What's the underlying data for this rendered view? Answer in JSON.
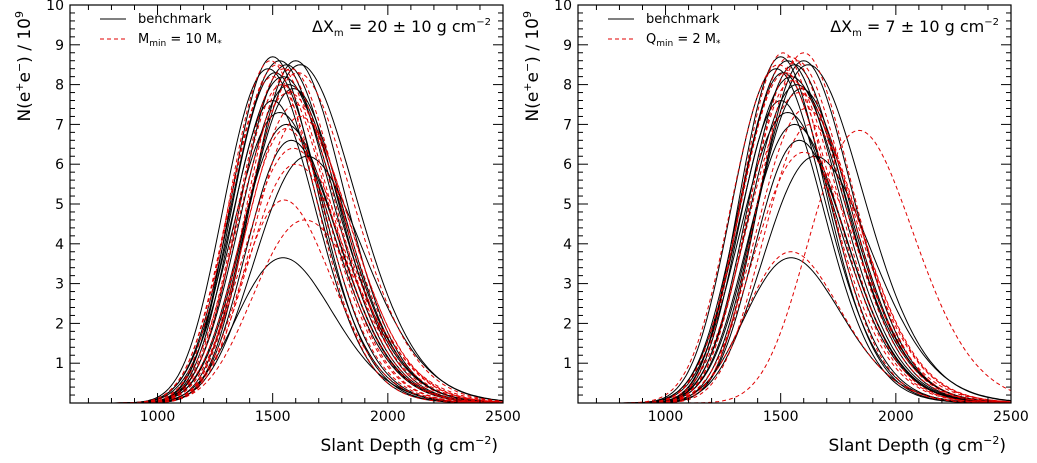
{
  "chart_data": [
    {
      "type": "line",
      "panel": "left",
      "xlabel": "Slant Depth (g cm",
      "xlabel_sup": "−2",
      "xlabel_end": ")",
      "ylabel": "N(e",
      "ylabel_sup1": "+",
      "ylabel_mid": "e",
      "ylabel_sup2": "−",
      "ylabel_end": ") / 10",
      "ylabel_sup3": "9",
      "xlim": [
        620,
        2500
      ],
      "ylim": [
        0,
        10
      ],
      "x_ticks": [
        1000,
        1500,
        2000,
        2500
      ],
      "x_tick_labels": [
        "1000",
        "1500",
        "2000",
        "2500"
      ],
      "y_ticks": [
        1,
        2,
        3,
        4,
        5,
        6,
        7,
        8,
        9,
        10
      ],
      "y_tick_labels": [
        "1",
        "2",
        "3",
        "4",
        "5",
        "6",
        "7",
        "8",
        "9",
        "10"
      ],
      "annotation": {
        "prefix": "ΔX",
        "sub": "m",
        "rest": " = 20 ± 10 g cm",
        "sup": "−2"
      },
      "legend": [
        {
          "label": "benchmark",
          "style": "solid",
          "color": "#000000"
        },
        {
          "label": "M",
          "sub": "min",
          "rest": " = 10 M",
          "sub2": "*",
          "style": "dashed",
          "color": "#e00000"
        }
      ],
      "legend_position": "top-left",
      "series": [
        {
          "style": "solid",
          "curves": [
            {
              "xmax": 1500,
              "nmax": 8.7
            },
            {
              "xmax": 1530,
              "nmax": 8.6
            },
            {
              "xmax": 1560,
              "nmax": 8.5
            },
            {
              "xmax": 1600,
              "nmax": 8.6
            },
            {
              "xmax": 1620,
              "nmax": 8.5
            },
            {
              "xmax": 1480,
              "nmax": 8.4
            },
            {
              "xmax": 1510,
              "nmax": 8.3
            },
            {
              "xmax": 1545,
              "nmax": 8.2
            },
            {
              "xmax": 1570,
              "nmax": 8.0
            },
            {
              "xmax": 1590,
              "nmax": 7.9
            },
            {
              "xmax": 1500,
              "nmax": 7.6
            },
            {
              "xmax": 1530,
              "nmax": 7.3
            },
            {
              "xmax": 1560,
              "nmax": 7.0
            },
            {
              "xmax": 1580,
              "nmax": 6.6
            },
            {
              "xmax": 1650,
              "nmax": 6.2
            },
            {
              "xmax": 1545,
              "nmax": 3.65
            }
          ]
        },
        {
          "style": "dashed",
          "curves": [
            {
              "xmax": 1490,
              "nmax": 8.6
            },
            {
              "xmax": 1520,
              "nmax": 8.5
            },
            {
              "xmax": 1550,
              "nmax": 8.4
            },
            {
              "xmax": 1580,
              "nmax": 8.4
            },
            {
              "xmax": 1610,
              "nmax": 8.3
            },
            {
              "xmax": 1500,
              "nmax": 8.2
            },
            {
              "xmax": 1540,
              "nmax": 8.0
            },
            {
              "xmax": 1570,
              "nmax": 7.8
            },
            {
              "xmax": 1600,
              "nmax": 7.5
            },
            {
              "xmax": 1620,
              "nmax": 7.2
            },
            {
              "xmax": 1560,
              "nmax": 6.9
            },
            {
              "xmax": 1590,
              "nmax": 6.4
            },
            {
              "xmax": 1600,
              "nmax": 6.0
            },
            {
              "xmax": 1550,
              "nmax": 5.1
            },
            {
              "xmax": 1640,
              "nmax": 4.6
            }
          ]
        }
      ]
    },
    {
      "type": "line",
      "panel": "right",
      "xlabel": "Slant Depth (g cm",
      "xlabel_sup": "−2",
      "xlabel_end": ")",
      "ylabel": "N(e",
      "ylabel_sup1": "+",
      "ylabel_mid": "e",
      "ylabel_sup2": "−",
      "ylabel_end": ") / 10",
      "ylabel_sup3": "9",
      "xlim": [
        620,
        2500
      ],
      "ylim": [
        0,
        10
      ],
      "x_ticks": [
        1000,
        1500,
        2000,
        2500
      ],
      "x_tick_labels": [
        "1000",
        "1500",
        "2000",
        "2500"
      ],
      "y_ticks": [
        1,
        2,
        3,
        4,
        5,
        6,
        7,
        8,
        9,
        10
      ],
      "y_tick_labels": [
        "1",
        "2",
        "3",
        "4",
        "5",
        "6",
        "7",
        "8",
        "9",
        "10"
      ],
      "annotation": {
        "prefix": "ΔX",
        "sub": "m",
        "rest": " = 7 ± 10 g cm",
        "sup": "−2"
      },
      "legend": [
        {
          "label": "benchmark",
          "style": "solid",
          "color": "#000000"
        },
        {
          "label": "Q",
          "sub": "min",
          "rest": " = 2 M",
          "sub2": "*",
          "style": "dashed",
          "color": "#e00000"
        }
      ],
      "legend_position": "top-left",
      "series": [
        {
          "style": "solid",
          "curves": [
            {
              "xmax": 1500,
              "nmax": 8.7
            },
            {
              "xmax": 1530,
              "nmax": 8.6
            },
            {
              "xmax": 1560,
              "nmax": 8.5
            },
            {
              "xmax": 1600,
              "nmax": 8.6
            },
            {
              "xmax": 1620,
              "nmax": 8.5
            },
            {
              "xmax": 1480,
              "nmax": 8.4
            },
            {
              "xmax": 1510,
              "nmax": 8.3
            },
            {
              "xmax": 1545,
              "nmax": 8.2
            },
            {
              "xmax": 1570,
              "nmax": 8.0
            },
            {
              "xmax": 1590,
              "nmax": 7.9
            },
            {
              "xmax": 1500,
              "nmax": 7.6
            },
            {
              "xmax": 1530,
              "nmax": 7.3
            },
            {
              "xmax": 1560,
              "nmax": 7.0
            },
            {
              "xmax": 1580,
              "nmax": 6.6
            },
            {
              "xmax": 1650,
              "nmax": 6.2
            },
            {
              "xmax": 1545,
              "nmax": 3.65
            }
          ]
        },
        {
          "style": "dashed",
          "curves": [
            {
              "xmax": 1510,
              "nmax": 8.8
            },
            {
              "xmax": 1540,
              "nmax": 8.7
            },
            {
              "xmax": 1570,
              "nmax": 8.6
            },
            {
              "xmax": 1600,
              "nmax": 8.8
            },
            {
              "xmax": 1490,
              "nmax": 8.5
            },
            {
              "xmax": 1520,
              "nmax": 8.3
            },
            {
              "xmax": 1550,
              "nmax": 8.1
            },
            {
              "xmax": 1580,
              "nmax": 7.8
            },
            {
              "xmax": 1610,
              "nmax": 7.4
            },
            {
              "xmax": 1630,
              "nmax": 7.0
            },
            {
              "xmax": 1840,
              "nmax": 6.85
            },
            {
              "xmax": 1600,
              "nmax": 6.3
            },
            {
              "xmax": 1545,
              "nmax": 3.8
            }
          ]
        }
      ]
    }
  ]
}
